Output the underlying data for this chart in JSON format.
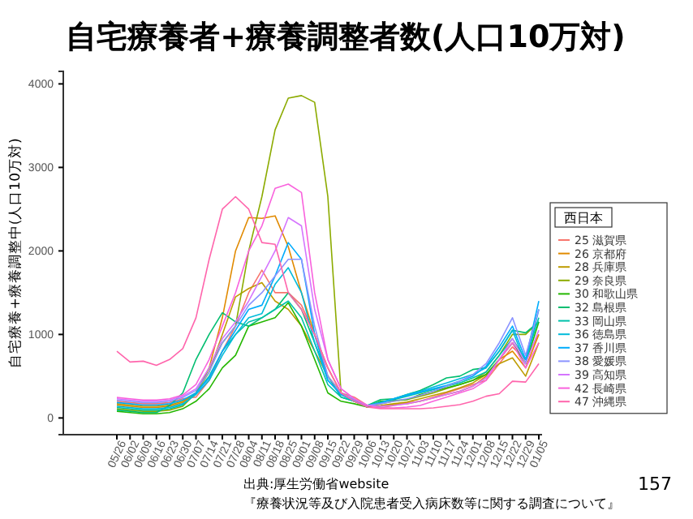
{
  "chart_data": {
    "type": "line",
    "title": "自宅療養者+療養調整者数(人口10万対)",
    "ylabel": "自宅療養+療養調整中(人口10万対)",
    "legend_title": "西日本",
    "legend": "right",
    "marker": "none",
    "line_style": "solid",
    "categories": [
      "05/26",
      "06/02",
      "06/09",
      "06/16",
      "06/23",
      "06/30",
      "07/07",
      "07/14",
      "07/21",
      "07/28",
      "08/04",
      "08/11",
      "08/18",
      "08/25",
      "09/01",
      "09/08",
      "09/15",
      "09/22",
      "09/29",
      "10/06",
      "10/13",
      "10/20",
      "10/27",
      "11/03",
      "11/10",
      "11/17",
      "11/24",
      "12/01",
      "12/08",
      "12/15",
      "12/22",
      "12/29",
      "01/05"
    ],
    "ylim": [
      -200,
      4150
    ],
    "yticks": [
      0,
      1000,
      2000,
      3000,
      4000
    ],
    "series": [
      {
        "name": "25 滋賀県",
        "color": "#f8766d",
        "values": [
          200,
          185,
          170,
          170,
          185,
          230,
          250,
          450,
          800,
          1100,
          1500,
          1770,
          1500,
          1500,
          1350,
          1000,
          500,
          300,
          250,
          150,
          120,
          150,
          180,
          200,
          250,
          300,
          350,
          400,
          450,
          650,
          850,
          700,
          1000
        ]
      },
      {
        "name": "26 京都府",
        "color": "#e18a00",
        "values": [
          155,
          140,
          125,
          125,
          140,
          185,
          300,
          600,
          1200,
          2000,
          2400,
          2390,
          2420,
          2050,
          1500,
          1000,
          600,
          300,
          200,
          130,
          140,
          160,
          170,
          200,
          240,
          280,
          320,
          380,
          500,
          700,
          800,
          600,
          1000
        ]
      },
      {
        "name": "28 兵庫県",
        "color": "#be9c00",
        "values": [
          170,
          155,
          140,
          140,
          155,
          200,
          300,
          550,
          1000,
          1450,
          1550,
          1620,
          1400,
          1300,
          1100,
          800,
          500,
          300,
          200,
          140,
          150,
          170,
          190,
          230,
          270,
          310,
          360,
          420,
          520,
          650,
          720,
          500,
          900
        ]
      },
      {
        "name": "29 奈良県",
        "color": "#8cab00",
        "values": [
          110,
          95,
          80,
          80,
          95,
          140,
          300,
          600,
          900,
          1100,
          2000,
          2650,
          3450,
          3830,
          3860,
          3780,
          2650,
          300,
          200,
          130,
          170,
          200,
          220,
          260,
          300,
          350,
          400,
          450,
          550,
          750,
          1000,
          1000,
          1150
        ]
      },
      {
        "name": "30 和歌山県",
        "color": "#24b700",
        "values": [
          80,
          65,
          50,
          50,
          65,
          110,
          200,
          350,
          600,
          750,
          1100,
          1150,
          1200,
          1380,
          1100,
          700,
          300,
          200,
          170,
          130,
          200,
          210,
          220,
          280,
          320,
          360,
          400,
          450,
          520,
          700,
          900,
          650,
          1150
        ]
      },
      {
        "name": "32 島根県",
        "color": "#00be70",
        "values": [
          95,
          80,
          65,
          65,
          150,
          300,
          700,
          1000,
          1260,
          1150,
          1100,
          1200,
          1300,
          1500,
          1300,
          900,
          500,
          250,
          200,
          150,
          220,
          230,
          280,
          330,
          400,
          480,
          500,
          580,
          600,
          800,
          1050,
          1020,
          1150
        ]
      },
      {
        "name": "33 岡山県",
        "color": "#00c1ab",
        "values": [
          125,
          110,
          95,
          95,
          110,
          155,
          300,
          500,
          800,
          1000,
          1150,
          1200,
          1300,
          1400,
          1200,
          800,
          400,
          250,
          200,
          150,
          190,
          220,
          260,
          300,
          340,
          380,
          420,
          480,
          550,
          750,
          950,
          700,
          1200
        ]
      },
      {
        "name": "36 徳島県",
        "color": "#00bbda",
        "values": [
          140,
          125,
          110,
          110,
          125,
          170,
          280,
          450,
          750,
          1000,
          1200,
          1250,
          1600,
          1800,
          1500,
          900,
          450,
          280,
          200,
          140,
          180,
          230,
          280,
          320,
          370,
          420,
          470,
          520,
          600,
          800,
          1050,
          650,
          1300
        ]
      },
      {
        "name": "37 香川県",
        "color": "#00acfc",
        "values": [
          185,
          170,
          155,
          155,
          170,
          215,
          300,
          480,
          800,
          1050,
          1300,
          1350,
          1700,
          2100,
          1900,
          1000,
          450,
          280,
          220,
          150,
          180,
          230,
          270,
          310,
          350,
          390,
          440,
          500,
          620,
          850,
          1100,
          700,
          1400
        ]
      },
      {
        "name": "38 愛媛県",
        "color": "#8b93ff",
        "values": [
          215,
          200,
          185,
          185,
          200,
          245,
          330,
          550,
          900,
          1100,
          1350,
          1500,
          1700,
          1900,
          1900,
          1100,
          500,
          300,
          220,
          150,
          170,
          200,
          230,
          270,
          320,
          380,
          440,
          520,
          650,
          900,
          1200,
          750,
          1300
        ]
      },
      {
        "name": "39 高知県",
        "color": "#d575fe",
        "values": [
          230,
          215,
          200,
          200,
          215,
          260,
          350,
          600,
          950,
          1150,
          1400,
          1700,
          2000,
          2400,
          2300,
          1300,
          700,
          350,
          230,
          150,
          140,
          150,
          170,
          200,
          240,
          280,
          320,
          380,
          480,
          700,
          950,
          650,
          1050
        ]
      },
      {
        "name": "42 長崎県",
        "color": "#f962dd",
        "values": [
          245,
          230,
          215,
          215,
          230,
          275,
          400,
          700,
          1100,
          1500,
          2000,
          2300,
          2750,
          2800,
          2700,
          1500,
          700,
          350,
          230,
          150,
          120,
          120,
          130,
          150,
          200,
          250,
          300,
          350,
          450,
          700,
          900,
          600,
          900
        ]
      },
      {
        "name": "47 沖縄県",
        "color": "#ff65ac",
        "values": [
          800,
          670,
          680,
          630,
          700,
          830,
          1200,
          1900,
          2500,
          2650,
          2500,
          2100,
          2080,
          1500,
          1300,
          1000,
          600,
          300,
          200,
          130,
          110,
          110,
          110,
          110,
          120,
          140,
          160,
          200,
          260,
          290,
          440,
          430,
          650
        ]
      }
    ],
    "annotations": [
      "出典:厚生労働省website",
      "『療養状況等及び入院患者受入病床数等に関する調査について』",
      "157"
    ]
  }
}
